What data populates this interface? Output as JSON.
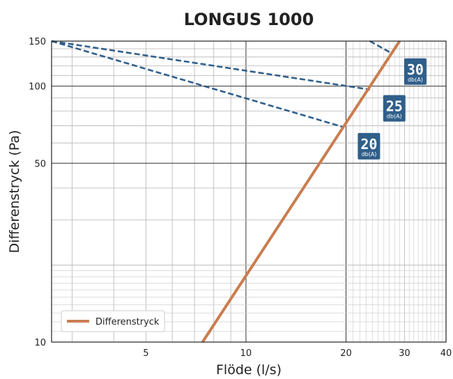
{
  "chart_data": {
    "type": "line",
    "title": "LONGUS 1000",
    "xlabel": "Flöde (l/s)",
    "ylabel": "Differenstryck (Pa)",
    "x_scale": "log",
    "y_scale": "log",
    "xlim": [
      2.6,
      40
    ],
    "ylim": [
      10,
      150
    ],
    "x_ticks": [
      5,
      10,
      20,
      30,
      40
    ],
    "y_ticks": [
      10,
      50,
      100,
      150
    ],
    "grid": true,
    "legend_position": "bottom-left",
    "colors": {
      "main": "#c97d4f",
      "dashed": "#2f5f8a",
      "badge": "#2f5f8a"
    },
    "series": [
      {
        "name": "Differenstryck",
        "style": "solid",
        "x": [
          7.4,
          29.0
        ],
        "y": [
          10,
          150
        ]
      }
    ],
    "sound_lines": [
      {
        "label": "20",
        "unit": "db(A)",
        "x": [
          2.6,
          19.8
        ],
        "y": [
          150,
          69
        ]
      },
      {
        "label": "25",
        "unit": "db(A)",
        "x": [
          2.6,
          23.6
        ],
        "y": [
          150,
          97
        ]
      },
      {
        "label": "30",
        "unit": "db(A)",
        "x": [
          23.6,
          27.3
        ],
        "y": [
          150,
          135
        ]
      }
    ]
  }
}
